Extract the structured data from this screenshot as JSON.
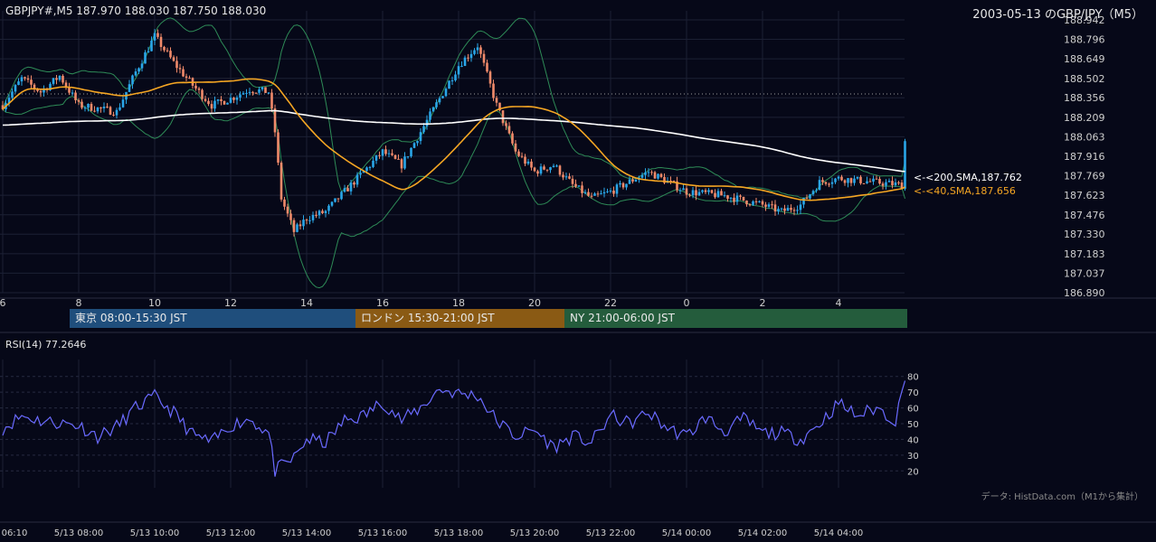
{
  "header": {
    "symbol_info": "GBPJPY#,M5 187.970 188.030 187.750 188.030",
    "date_title": "2003-05-13 のGBP/JPY（M5）"
  },
  "sessions": [
    {
      "label": "東京 08:00-15:30 JST",
      "color": "#1f4e7c"
    },
    {
      "label": "ロンドン 15:30-21:00 JST",
      "color": "#8a5a14"
    },
    {
      "label": "NY 21:00-06:00 JST",
      "color": "#245c3c"
    }
  ],
  "colors": {
    "bull_candle": "#2aa6e8",
    "bear_candle": "#f08a6a",
    "sma200": "#ffffff",
    "sma40": "#f5a623",
    "bollinger": "#2e8b57",
    "rsi": "#6a6aff"
  },
  "sma_labels": {
    "sma200": "<-<200,SMA,187.762",
    "sma40": "<-<40,SMA,187.656"
  },
  "rsi_title": "RSI(14) 77.2646",
  "data_source": "データ: HistData.com（M1から集計）",
  "chart_data": [
    {
      "type": "candlestick",
      "title": "GBPJPY#,M5",
      "ylim": [
        186.89,
        188.942
      ],
      "y_ticks": [
        "188.942",
        "188.796",
        "188.649",
        "188.502",
        "188.356",
        "188.209",
        "188.063",
        "187.916",
        "187.769",
        "187.623",
        "187.476",
        "187.330",
        "187.183",
        "187.037",
        "186.890"
      ],
      "x_hour_ticks": [
        "6",
        "8",
        "10",
        "12",
        "14",
        "16",
        "18",
        "20",
        "22",
        "0",
        "2",
        "4"
      ],
      "last_close": 188.03,
      "sma200_last": 187.762,
      "sma40_last": 187.656,
      "path_anchors": [
        {
          "t": "05-13 06:00",
          "v": 188.3
        },
        {
          "t": "05-13 06:30",
          "v": 188.5
        },
        {
          "t": "05-13 07:00",
          "v": 188.4
        },
        {
          "t": "05-13 07:30",
          "v": 188.52
        },
        {
          "t": "05-13 08:00",
          "v": 188.3
        },
        {
          "t": "05-13 09:00",
          "v": 188.25
        },
        {
          "t": "05-13 09:30",
          "v": 188.55
        },
        {
          "t": "05-13 10:00",
          "v": 188.82
        },
        {
          "t": "05-13 10:30",
          "v": 188.62
        },
        {
          "t": "05-13 11:00",
          "v": 188.45
        },
        {
          "t": "05-13 11:30",
          "v": 188.3
        },
        {
          "t": "05-13 12:00",
          "v": 188.35
        },
        {
          "t": "05-13 12:30",
          "v": 188.42
        },
        {
          "t": "05-13 13:00",
          "v": 188.4
        },
        {
          "t": "05-13 13:10",
          "v": 188.1
        },
        {
          "t": "05-13 13:20",
          "v": 187.6
        },
        {
          "t": "05-13 13:40",
          "v": 187.35
        },
        {
          "t": "05-13 14:00",
          "v": 187.45
        },
        {
          "t": "05-13 14:30",
          "v": 187.5
        },
        {
          "t": "05-13 15:00",
          "v": 187.65
        },
        {
          "t": "05-13 15:30",
          "v": 187.8
        },
        {
          "t": "05-13 16:00",
          "v": 187.95
        },
        {
          "t": "05-13 16:30",
          "v": 187.85
        },
        {
          "t": "05-13 17:00",
          "v": 188.1
        },
        {
          "t": "05-13 17:30",
          "v": 188.35
        },
        {
          "t": "05-13 18:00",
          "v": 188.6
        },
        {
          "t": "05-13 18:30",
          "v": 188.75
        },
        {
          "t": "05-13 19:00",
          "v": 188.3
        },
        {
          "t": "05-13 19:30",
          "v": 187.95
        },
        {
          "t": "05-13 20:00",
          "v": 187.8
        },
        {
          "t": "05-13 20:30",
          "v": 187.85
        },
        {
          "t": "05-13 21:00",
          "v": 187.7
        },
        {
          "t": "05-13 21:30",
          "v": 187.6
        },
        {
          "t": "05-13 22:00",
          "v": 187.65
        },
        {
          "t": "05-13 23:00",
          "v": 187.8
        },
        {
          "t": "05-14 00:00",
          "v": 187.65
        },
        {
          "t": "05-14 01:00",
          "v": 187.62
        },
        {
          "t": "05-14 02:00",
          "v": 187.55
        },
        {
          "t": "05-14 02:30",
          "v": 187.5
        },
        {
          "t": "05-14 03:00",
          "v": 187.55
        },
        {
          "t": "05-14 03:30",
          "v": 187.72
        },
        {
          "t": "05-14 04:00",
          "v": 187.75
        },
        {
          "t": "05-14 05:00",
          "v": 187.72
        },
        {
          "t": "05-14 05:40",
          "v": 187.7
        },
        {
          "t": "05-14 05:45",
          "v": 188.03
        }
      ]
    },
    {
      "type": "line",
      "title": "RSI(14) 77.2646",
      "ylim": [
        15,
        85
      ],
      "y_ticks": [
        "80",
        "70",
        "60",
        "50",
        "40",
        "30",
        "20"
      ],
      "x_labels": [
        "06:10",
        "5/13 08:00",
        "5/13 10:00",
        "5/13 12:00",
        "5/13 14:00",
        "5/13 16:00",
        "5/13 18:00",
        "5/13 20:00",
        "5/13 22:00",
        "5/14 00:00",
        "5/14 02:00",
        "5/14 04:00"
      ],
      "last_value": 77.2646,
      "path_anchors": [
        {
          "t": "05-13 06:00",
          "v": 47
        },
        {
          "t": "05-13 06:30",
          "v": 55
        },
        {
          "t": "05-13 07:00",
          "v": 52
        },
        {
          "t": "05-13 08:00",
          "v": 49
        },
        {
          "t": "05-13 08:30",
          "v": 42
        },
        {
          "t": "05-13 09:00",
          "v": 48
        },
        {
          "t": "05-13 09:30",
          "v": 60
        },
        {
          "t": "05-13 10:00",
          "v": 67
        },
        {
          "t": "05-13 10:30",
          "v": 57
        },
        {
          "t": "05-13 11:00",
          "v": 43
        },
        {
          "t": "05-13 11:30",
          "v": 38
        },
        {
          "t": "05-13 12:00",
          "v": 49
        },
        {
          "t": "05-13 12:30",
          "v": 53
        },
        {
          "t": "05-13 13:00",
          "v": 44
        },
        {
          "t": "05-13 13:10",
          "v": 20
        },
        {
          "t": "05-13 13:40",
          "v": 28
        },
        {
          "t": "05-13 14:00",
          "v": 40
        },
        {
          "t": "05-13 14:30",
          "v": 38
        },
        {
          "t": "05-13 15:00",
          "v": 52
        },
        {
          "t": "05-13 15:30",
          "v": 55
        },
        {
          "t": "05-13 16:00",
          "v": 64
        },
        {
          "t": "05-13 16:30",
          "v": 52
        },
        {
          "t": "05-13 17:00",
          "v": 60
        },
        {
          "t": "05-13 17:30",
          "v": 72
        },
        {
          "t": "05-13 18:00",
          "v": 69
        },
        {
          "t": "05-13 18:30",
          "v": 68
        },
        {
          "t": "05-13 19:00",
          "v": 52
        },
        {
          "t": "05-13 19:30",
          "v": 42
        },
        {
          "t": "05-13 20:00",
          "v": 46
        },
        {
          "t": "05-13 20:30",
          "v": 35
        },
        {
          "t": "05-13 21:00",
          "v": 42
        },
        {
          "t": "05-13 21:30",
          "v": 38
        },
        {
          "t": "05-13 22:00",
          "v": 55
        },
        {
          "t": "05-13 22:30",
          "v": 50
        },
        {
          "t": "05-13 23:00",
          "v": 57
        },
        {
          "t": "05-13 23:30",
          "v": 47
        },
        {
          "t": "05-14 00:00",
          "v": 42
        },
        {
          "t": "05-14 00:30",
          "v": 54
        },
        {
          "t": "05-14 01:00",
          "v": 45
        },
        {
          "t": "05-14 01:30",
          "v": 53
        },
        {
          "t": "05-14 02:00",
          "v": 44
        },
        {
          "t": "05-14 02:30",
          "v": 44
        },
        {
          "t": "05-14 03:00",
          "v": 40
        },
        {
          "t": "05-14 03:30",
          "v": 50
        },
        {
          "t": "05-14 04:00",
          "v": 63
        },
        {
          "t": "05-14 04:30",
          "v": 55
        },
        {
          "t": "05-14 05:00",
          "v": 60
        },
        {
          "t": "05-14 05:30",
          "v": 52
        },
        {
          "t": "05-14 05:45",
          "v": 77.26
        }
      ]
    }
  ]
}
